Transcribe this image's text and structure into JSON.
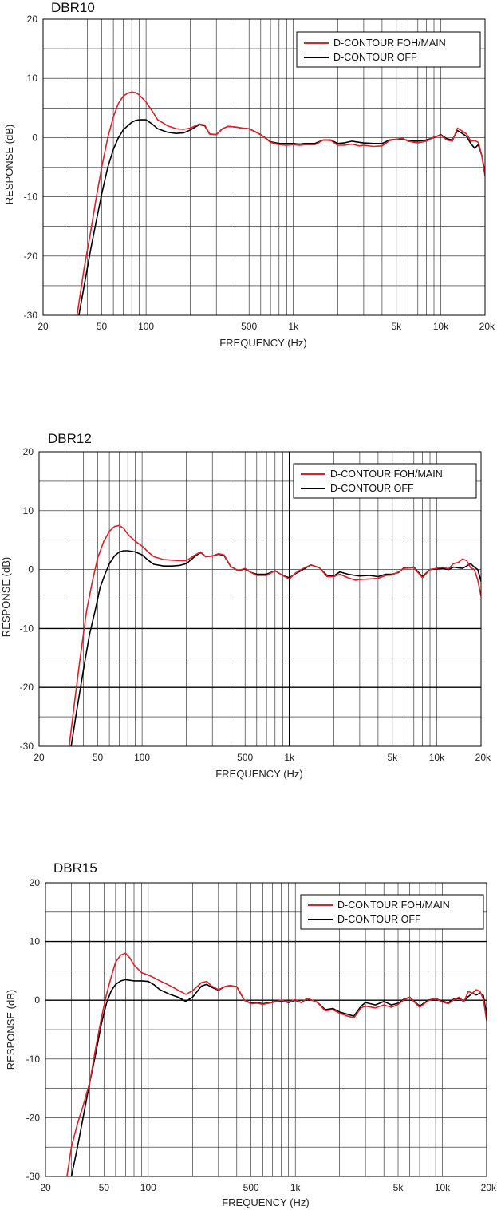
{
  "chart_data": [
    {
      "type": "line",
      "title": "DBR10",
      "xlabel": "FREQUENCY (Hz)",
      "ylabel": "RESPONSE (dB)",
      "x_scale": "log",
      "xlim": [
        20,
        20000
      ],
      "ylim": [
        -30,
        20
      ],
      "x_ticks": [
        20,
        50,
        100,
        500,
        1000,
        5000,
        10000,
        20000
      ],
      "x_tick_labels": [
        "20",
        "50",
        "100",
        "500",
        "1k",
        "5k",
        "10k",
        "20k"
      ],
      "y_ticks": [
        -30,
        -20,
        -10,
        0,
        10,
        20
      ],
      "y_tick_labels": [
        "-30",
        "-20",
        "-10",
        "0",
        "10",
        "20"
      ],
      "grid": true,
      "legend_position": "top-right",
      "series": [
        {
          "name": "D-CONTOUR FOH/MAIN",
          "color": "#e0202a",
          "x": [
            34,
            38,
            42,
            46,
            50,
            55,
            60,
            65,
            70,
            75,
            80,
            85,
            90,
            100,
            110,
            120,
            140,
            160,
            180,
            200,
            230,
            250,
            270,
            300,
            330,
            360,
            400,
            450,
            500,
            550,
            600,
            700,
            800,
            900,
            1000,
            1100,
            1200,
            1400,
            1600,
            1800,
            2000,
            2200,
            2500,
            2800,
            3000,
            3500,
            4000,
            4500,
            5000,
            5500,
            6000,
            7000,
            8000,
            9000,
            10000,
            11000,
            12000,
            13000,
            14000,
            15000,
            16000,
            17000,
            18000,
            19000,
            20000
          ],
          "y": [
            -30,
            -22,
            -16,
            -10,
            -5,
            0,
            3.5,
            5.8,
            7,
            7.5,
            7.7,
            7.6,
            7.2,
            6,
            4.5,
            3,
            2,
            1.5,
            1.4,
            1.6,
            2.3,
            2.1,
            0.6,
            0.5,
            1.5,
            1.9,
            1.8,
            1.6,
            1.5,
            1,
            0.5,
            -0.8,
            -1.2,
            -1.3,
            -1.2,
            -1.3,
            -1.2,
            -1.2,
            -0.4,
            -0.5,
            -1.3,
            -1.3,
            -1.1,
            -1.4,
            -1.3,
            -1.5,
            -1.4,
            -0.5,
            -0.3,
            -0.1,
            -0.6,
            -0.9,
            -0.6,
            0.1,
            0.4,
            -0.4,
            -0.6,
            1.6,
            1.1,
            0.6,
            -0.6,
            -0.5,
            -0.8,
            -3,
            -6.5
          ]
        },
        {
          "name": "D-CONTOUR OFF",
          "color": "#000000",
          "x": [
            35,
            38,
            42,
            46,
            50,
            55,
            60,
            65,
            70,
            75,
            80,
            85,
            90,
            100,
            110,
            120,
            140,
            160,
            180,
            200,
            230,
            250,
            270,
            300,
            330,
            360,
            400,
            450,
            500,
            550,
            600,
            700,
            800,
            900,
            1000,
            1100,
            1200,
            1400,
            1600,
            1800,
            2000,
            2200,
            2500,
            2800,
            3000,
            3500,
            4000,
            4500,
            5000,
            5500,
            6000,
            7000,
            8000,
            9000,
            10000,
            11000,
            12000,
            13000,
            14000,
            15000,
            16000,
            17000,
            18000,
            19000,
            20000
          ],
          "y": [
            -30,
            -25,
            -19,
            -14,
            -9.5,
            -5,
            -2,
            0,
            1.3,
            2,
            2.6,
            2.9,
            3,
            3,
            2.3,
            1.5,
            0.9,
            0.7,
            0.8,
            1.3,
            2.2,
            2,
            0.6,
            0.5,
            1.5,
            1.9,
            1.8,
            1.6,
            1.5,
            1,
            0.5,
            -0.7,
            -1,
            -1,
            -1,
            -1.1,
            -1,
            -1,
            -0.4,
            -0.4,
            -1,
            -0.9,
            -0.6,
            -0.8,
            -0.9,
            -1,
            -1,
            -0.4,
            -0.3,
            -0.2,
            -0.5,
            -0.6,
            -0.4,
            0,
            0.5,
            -0.2,
            -0.4,
            1.2,
            0.7,
            0.2,
            -1,
            -1.8,
            -1.2,
            -3,
            -6
          ]
        }
      ]
    },
    {
      "type": "line",
      "title": "DBR12",
      "xlabel": "FREQUENCY (Hz)",
      "ylabel": "RESPONSE (dB)",
      "x_scale": "log",
      "xlim": [
        20,
        20000
      ],
      "ylim": [
        -30,
        20
      ],
      "x_ticks": [
        20,
        50,
        100,
        500,
        1000,
        5000,
        10000,
        20000
      ],
      "x_tick_labels": [
        "20",
        "50",
        "100",
        "500",
        "1k",
        "5k",
        "10k",
        "20k"
      ],
      "y_ticks": [
        -30,
        -20,
        -10,
        0,
        10,
        20
      ],
      "y_tick_labels": [
        "-30",
        "-20",
        "-10",
        "0",
        "10",
        "20"
      ],
      "grid": true,
      "legend_position": "top-right",
      "series": [
        {
          "name": "D-CONTOUR FOH/MAIN",
          "color": "#e0202a",
          "x": [
            32,
            35,
            38,
            42,
            46,
            50,
            55,
            60,
            65,
            70,
            75,
            80,
            90,
            100,
            110,
            120,
            140,
            160,
            180,
            200,
            230,
            250,
            270,
            300,
            330,
            360,
            400,
            450,
            500,
            550,
            600,
            700,
            800,
            900,
            1000,
            1100,
            1200,
            1400,
            1600,
            1800,
            2000,
            2200,
            2500,
            2800,
            3000,
            3500,
            4000,
            4500,
            5000,
            5500,
            6000,
            7000,
            8000,
            9000,
            10000,
            11000,
            12000,
            13000,
            14000,
            15000,
            16000,
            17000,
            18000,
            19000,
            20000
          ],
          "y": [
            -30,
            -22,
            -15,
            -7,
            -2,
            2,
            4.8,
            6.5,
            7.3,
            7.5,
            7,
            6,
            4.8,
            4,
            3,
            2.2,
            1.7,
            1.6,
            1.5,
            1.5,
            2.5,
            3,
            2.2,
            2.3,
            2.7,
            2.5,
            0.5,
            -0.2,
            0.2,
            -0.5,
            -1,
            -1,
            -0.2,
            -1,
            -1.6,
            -0.6,
            0,
            0.8,
            0.3,
            -1.2,
            -1.2,
            -0.8,
            -1.4,
            -1.8,
            -1.7,
            -1.6,
            -1.5,
            -1,
            -0.9,
            -0.4,
            0.2,
            0.3,
            -1.4,
            0,
            0.2,
            0.4,
            0.1,
            1,
            1.2,
            1.8,
            1.5,
            0.3,
            0,
            -1.8,
            -4.5
          ]
        },
        {
          "name": "D-CONTOUR OFF",
          "color": "#000000",
          "x": [
            33,
            36,
            40,
            44,
            48,
            52,
            56,
            60,
            65,
            70,
            75,
            80,
            90,
            100,
            110,
            120,
            140,
            160,
            180,
            200,
            230,
            250,
            270,
            300,
            330,
            360,
            400,
            450,
            500,
            550,
            600,
            700,
            800,
            900,
            1000,
            1100,
            1200,
            1400,
            1600,
            1800,
            2000,
            2200,
            2500,
            2800,
            3000,
            3500,
            4000,
            4500,
            5000,
            5500,
            6000,
            7000,
            8000,
            9000,
            10000,
            11000,
            12000,
            13000,
            14000,
            15000,
            16000,
            17000,
            18000,
            19000,
            20000
          ],
          "y": [
            -30,
            -24,
            -17,
            -11,
            -7,
            -3,
            -0.8,
            1,
            2.3,
            3,
            3.2,
            3.2,
            3,
            2.5,
            1.6,
            0.9,
            0.6,
            0.6,
            0.7,
            1,
            2.3,
            2.9,
            2.2,
            2.3,
            2.6,
            2.4,
            0.5,
            -0.2,
            0.1,
            -0.5,
            -0.8,
            -0.8,
            -0.2,
            -1,
            -1.4,
            -0.7,
            -0.2,
            0.8,
            0.3,
            -1,
            -1.1,
            -0.4,
            -0.8,
            -1,
            -1.1,
            -1,
            -1.2,
            -0.8,
            -0.8,
            -0.5,
            0.3,
            0.4,
            -1.2,
            0,
            0.1,
            0.2,
            0,
            0.4,
            0.3,
            0.2,
            0.6,
            1,
            0.4,
            0,
            -2
          ]
        }
      ]
    },
    {
      "type": "line",
      "title": "DBR15",
      "xlabel": "FREQUENCY (Hz)",
      "ylabel": "RESPONSE (dB)",
      "x_scale": "log",
      "xlim": [
        20,
        20000
      ],
      "ylim": [
        -30,
        20
      ],
      "x_ticks": [
        20,
        50,
        100,
        500,
        1000,
        5000,
        10000,
        20000
      ],
      "x_tick_labels": [
        "20",
        "50",
        "100",
        "500",
        "1k",
        "5k",
        "10k",
        "20k"
      ],
      "y_ticks": [
        -30,
        -20,
        -10,
        0,
        10,
        20
      ],
      "y_tick_labels": [
        "-30",
        "-20",
        "-10",
        "0",
        "10",
        "20"
      ],
      "grid": true,
      "legend_position": "top-right",
      "series": [
        {
          "name": "D-CONTOUR FOH/MAIN",
          "color": "#e0202a",
          "x": [
            28,
            30,
            33,
            36,
            40,
            44,
            48,
            52,
            56,
            60,
            65,
            70,
            75,
            80,
            90,
            100,
            110,
            120,
            140,
            160,
            180,
            200,
            230,
            250,
            270,
            300,
            330,
            360,
            400,
            450,
            500,
            550,
            600,
            700,
            800,
            900,
            1000,
            1100,
            1200,
            1400,
            1600,
            1800,
            2000,
            2200,
            2500,
            2800,
            3000,
            3500,
            4000,
            4500,
            5000,
            5500,
            6000,
            7000,
            8000,
            9000,
            10000,
            11000,
            12000,
            13000,
            14000,
            15000,
            16000,
            17000,
            18000,
            19000,
            20000
          ],
          "y": [
            -30,
            -25,
            -21,
            -18,
            -14,
            -8,
            -3,
            1,
            4,
            6.5,
            7.7,
            8,
            7.2,
            6,
            4.7,
            4.3,
            3.8,
            3.3,
            2.5,
            1.7,
            1,
            1.6,
            3,
            3.2,
            2.4,
            1.8,
            2.3,
            2.5,
            2.3,
            0,
            -0.6,
            -0.5,
            -0.7,
            -0.4,
            0,
            -0.3,
            0.1,
            -0.4,
            0.3,
            -0.3,
            -1.8,
            -1.6,
            -2.2,
            -2.6,
            -3,
            -1.3,
            -1,
            -1.3,
            -0.8,
            -1.2,
            -0.7,
            0.1,
            0.5,
            -1.2,
            -0.1,
            0.3,
            -0.3,
            -0.6,
            0.1,
            0.5,
            -0.3,
            1.5,
            1.2,
            1.8,
            1.5,
            0.2,
            -3.5
          ]
        },
        {
          "name": "D-CONTOUR OFF",
          "color": "#000000",
          "x": [
            30,
            33,
            36,
            40,
            44,
            48,
            52,
            56,
            60,
            65,
            70,
            75,
            80,
            90,
            100,
            110,
            120,
            140,
            160,
            180,
            200,
            230,
            250,
            270,
            300,
            330,
            360,
            400,
            450,
            500,
            550,
            600,
            700,
            800,
            900,
            1000,
            1100,
            1200,
            1400,
            1600,
            1800,
            2000,
            2200,
            2500,
            2800,
            3000,
            3500,
            4000,
            4500,
            5000,
            5500,
            6000,
            7000,
            8000,
            9000,
            10000,
            11000,
            12000,
            13000,
            14000,
            15000,
            16000,
            17000,
            18000,
            19000,
            20000
          ],
          "y": [
            -30,
            -25,
            -20,
            -14,
            -9,
            -4,
            -0.5,
            1.6,
            2.7,
            3.3,
            3.5,
            3.4,
            3.3,
            3.3,
            3.2,
            2.6,
            1.8,
            1,
            0.5,
            -0.2,
            0.5,
            2.4,
            2.7,
            2.2,
            1.7,
            2.3,
            2.5,
            2.3,
            0,
            -0.5,
            -0.4,
            -0.6,
            -0.3,
            -0.1,
            -0.4,
            0,
            -0.4,
            0.3,
            -0.3,
            -1.6,
            -1.4,
            -2,
            -2.3,
            -2.7,
            -1,
            -0.4,
            -0.8,
            -0.2,
            -0.8,
            -0.5,
            0.2,
            0.5,
            -1,
            0,
            0.3,
            -0.2,
            -0.4,
            0.2,
            0.3,
            -0.1,
            0.6,
            1.2,
            0.9,
            1.2,
            0.8,
            -2.5
          ]
        }
      ]
    }
  ]
}
